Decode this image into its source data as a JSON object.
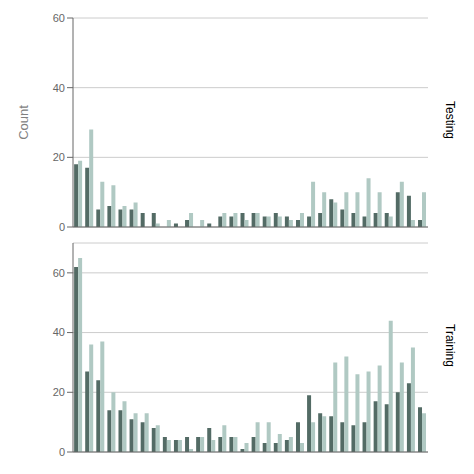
{
  "chart_data": [
    {
      "type": "bar",
      "title": "Testing",
      "ylabel": "Count",
      "categories": [
        null,
        null,
        null,
        null,
        null,
        null,
        null,
        null,
        null,
        null,
        null,
        null,
        null,
        null,
        null,
        null,
        null,
        null,
        null,
        null,
        null,
        null,
        null,
        null,
        null,
        null,
        null,
        null,
        null,
        null,
        null,
        null
      ],
      "series": [
        {
          "color": "#536b65",
          "values": [
            18,
            17,
            5,
            6,
            5,
            5,
            4,
            4,
            0,
            1,
            2,
            0,
            1,
            3,
            3,
            4,
            4,
            3,
            4,
            3,
            2,
            3,
            4,
            8,
            5,
            4,
            3,
            4,
            4,
            10,
            9,
            2
          ]
        },
        {
          "color": "#b0c9c3",
          "values": [
            19,
            28,
            13,
            12,
            6,
            7,
            0,
            1,
            2,
            0,
            4,
            2,
            0,
            4,
            4,
            2,
            4,
            3,
            3,
            2,
            4,
            13,
            10,
            7,
            10,
            10,
            14,
            10,
            3,
            13,
            2,
            10
          ]
        }
      ],
      "ylim": [
        0,
        60
      ],
      "yticks": [
        0,
        20,
        40,
        60
      ],
      "grid": true,
      "tick_labels": "y"
    },
    {
      "type": "bar",
      "title": "Training",
      "categories": [
        null,
        null,
        null,
        null,
        null,
        null,
        null,
        null,
        null,
        null,
        null,
        null,
        null,
        null,
        null,
        null,
        null,
        null,
        null,
        null,
        null,
        null,
        null,
        null,
        null,
        null,
        null,
        null,
        null,
        null,
        null,
        null
      ],
      "series": [
        {
          "color": "#536b65",
          "values": [
            62,
            27,
            24,
            14,
            14,
            11,
            10,
            8,
            5,
            4,
            5,
            5,
            8,
            5,
            5,
            1,
            5,
            3,
            3,
            4,
            10,
            19,
            13,
            12,
            10,
            9,
            10,
            17,
            16,
            20,
            23,
            15
          ]
        },
        {
          "color": "#b0c9c3",
          "values": [
            65,
            36,
            37,
            20,
            17,
            13,
            13,
            9,
            4,
            4,
            1,
            5,
            4,
            9,
            5,
            3,
            10,
            10,
            6,
            5,
            3,
            10,
            12,
            30,
            32,
            26,
            27,
            29,
            44,
            30,
            35,
            13
          ]
        }
      ],
      "ylim": [
        0,
        70
      ],
      "yticks": [
        0,
        20,
        40,
        60
      ],
      "grid": true,
      "tick_labels": "y"
    }
  ]
}
